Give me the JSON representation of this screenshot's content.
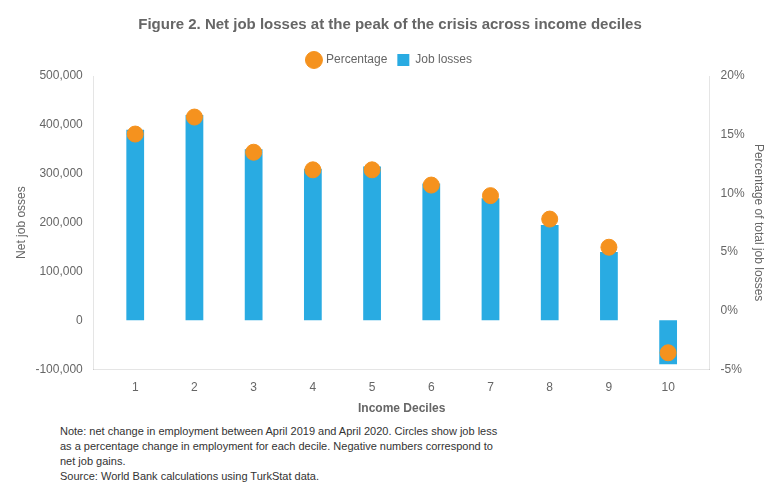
{
  "chart_data": {
    "type": "bar",
    "title": "Figure 2. Net job losses at the peak of the crisis across income deciles",
    "xlabel": "Income Deciles",
    "ylabel": "Net job osses",
    "y2label": "Percentage of total job losses",
    "x": [
      1,
      2,
      3,
      4,
      5,
      6,
      7,
      8,
      9,
      10
    ],
    "xlim": [
      0.3,
      10.7
    ],
    "xticks": [
      1,
      2,
      3,
      4,
      5,
      6,
      7,
      8,
      9,
      10
    ],
    "ylim": [
      -100000,
      500000
    ],
    "yticks": [
      {
        "value": -100000,
        "label": "-100,000"
      },
      0,
      {
        "value": 100000,
        "label": "100,000"
      },
      {
        "value": 200000,
        "label": "200,000"
      },
      {
        "value": 300000,
        "label": "300,000"
      },
      {
        "value": 400000,
        "label": "400,000"
      },
      {
        "value": 500000,
        "label": "500,000"
      }
    ],
    "y2lim": [
      -0.05,
      0.2
    ],
    "y2ticks": [
      {
        "value": -0.05,
        "label": "-5%"
      },
      {
        "value": 0.0,
        "label": "0%"
      },
      {
        "value": 0.05,
        "label": "5%"
      },
      {
        "value": 0.1,
        "label": "10%"
      },
      {
        "value": 0.15,
        "label": "15%"
      },
      {
        "value": 0.2,
        "label": "20%"
      }
    ],
    "series": [
      {
        "name": "Job losses",
        "type": "bar",
        "color": "#29ABE2",
        "values": [
          390000,
          420000,
          350000,
          310000,
          315000,
          280000,
          250000,
          195000,
          140000,
          -90000
        ]
      },
      {
        "name": "Percentage",
        "type": "scatter",
        "axis": "y2",
        "marker": "circle",
        "color": "#F5921E",
        "values": [
          0.1505,
          0.165,
          0.135,
          0.12,
          0.12,
          0.107,
          0.098,
          0.078,
          0.054,
          -0.036
        ]
      }
    ],
    "legend": "top",
    "grid": false,
    "annotations": [
      "Note: net change in employment between April 2019 and April 2020. Circles show job less",
      "as a percentage change in employment for each decile. Negative numbers correspond to",
      "net job gains.",
      "Source: World Bank calculations using TurkStat data."
    ]
  }
}
